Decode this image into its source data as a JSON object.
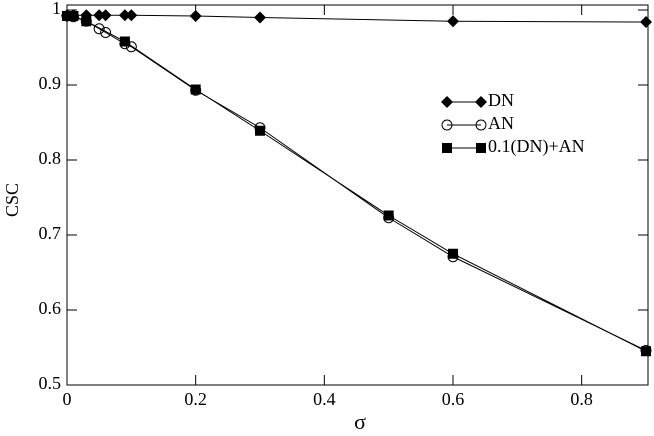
{
  "chart_data": {
    "type": "line",
    "xlabel": "σ",
    "ylabel": "CSC",
    "xlim": [
      0,
      0.9
    ],
    "ylim": [
      0.5,
      1
    ],
    "xticks": [
      0,
      0.2,
      0.4,
      0.6,
      0.8
    ],
    "yticks": [
      0.5,
      0.6,
      0.7,
      0.8,
      0.9,
      1
    ],
    "legend": "upper right",
    "series": [
      {
        "name": "DN",
        "color": "#000000",
        "marker": "diamond",
        "x": [
          0,
          0.01,
          0.03,
          0.05,
          0.06,
          0.09,
          0.1,
          0.2,
          0.3,
          0.6,
          0.9
        ],
        "values": [
          0.993,
          0.993,
          0.993,
          0.993,
          0.993,
          0.993,
          0.993,
          0.992,
          0.99,
          0.985,
          0.984
        ]
      },
      {
        "name": "AN",
        "color": "#000000",
        "marker": "circle",
        "x": [
          0,
          0.01,
          0.03,
          0.05,
          0.06,
          0.09,
          0.1,
          0.2,
          0.3,
          0.5,
          0.6,
          0.9
        ],
        "values": [
          0.992,
          0.991,
          0.985,
          0.975,
          0.97,
          0.955,
          0.951,
          0.893,
          0.843,
          0.723,
          0.671,
          0.546
        ]
      },
      {
        "name": "0.1(DN)+AN",
        "color": "#000000",
        "marker": "square",
        "x": [
          0,
          0.01,
          0.03,
          0.09,
          0.2,
          0.3,
          0.5,
          0.6,
          0.9
        ],
        "values": [
          0.992,
          0.992,
          0.985,
          0.958,
          0.894,
          0.839,
          0.726,
          0.675,
          0.545
        ]
      }
    ]
  }
}
